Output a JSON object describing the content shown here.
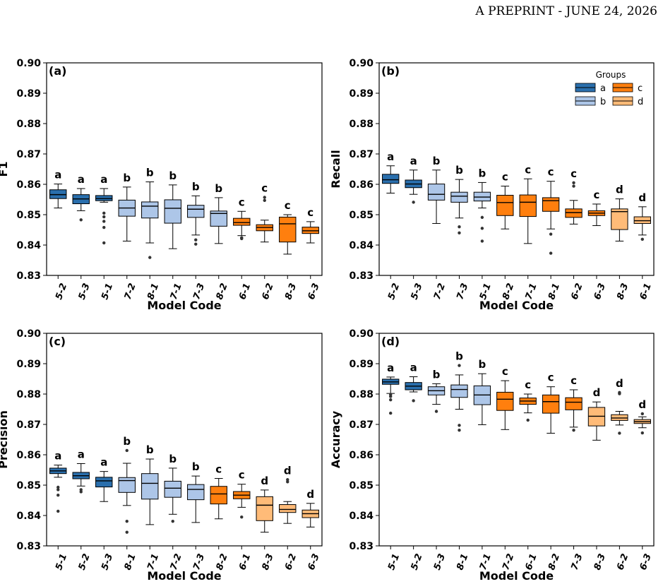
{
  "header": {
    "prefix": "A",
    "rest": "PREPRINT - JUNE 24, 2026"
  },
  "colors": {
    "a": "#2a6fad",
    "b": "#adc6e8",
    "c": "#ff7f0e",
    "d": "#ffbb78"
  },
  "legend": {
    "title": "Groups",
    "items": [
      "a",
      "b",
      "c",
      "d"
    ]
  },
  "chart_data": [
    {
      "type": "box",
      "panel": "(a)",
      "xlabel": "Model Code",
      "ylabel": "F1",
      "ylim": [
        0.83,
        0.9
      ],
      "yticks": [
        "0.83",
        "0.84",
        "0.85",
        "0.86",
        "0.87",
        "0.88",
        "0.89",
        "0.90"
      ],
      "boxes": [
        {
          "cat": "5-2",
          "group": "a",
          "min": 0.8522,
          "q1": 0.8553,
          "median": 0.8566,
          "q3": 0.8582,
          "max": 0.8601,
          "outliers": []
        },
        {
          "cat": "5-3",
          "group": "a",
          "min": 0.8513,
          "q1": 0.8536,
          "median": 0.8552,
          "q3": 0.8566,
          "max": 0.8586,
          "outliers": [
            0.8483
          ]
        },
        {
          "cat": "5-1",
          "group": "a",
          "min": 0.8541,
          "q1": 0.8546,
          "median": 0.8553,
          "q3": 0.8563,
          "max": 0.8586,
          "outliers": [
            0.8505,
            0.8493,
            0.8478,
            0.8458,
            0.8407
          ]
        },
        {
          "cat": "7-2",
          "group": "b",
          "min": 0.8413,
          "q1": 0.8495,
          "median": 0.8522,
          "q3": 0.8548,
          "max": 0.8591,
          "outliers": []
        },
        {
          "cat": "8-1",
          "group": "b",
          "min": 0.8407,
          "q1": 0.8489,
          "median": 0.8528,
          "q3": 0.8542,
          "max": 0.8608,
          "outliers": [
            0.8359
          ]
        },
        {
          "cat": "7-1",
          "group": "b",
          "min": 0.8388,
          "q1": 0.8472,
          "median": 0.8521,
          "q3": 0.8549,
          "max": 0.8598,
          "outliers": []
        },
        {
          "cat": "7-3",
          "group": "b",
          "min": 0.8433,
          "q1": 0.8491,
          "median": 0.8518,
          "q3": 0.8531,
          "max": 0.8562,
          "outliers": [
            0.8417,
            0.8403
          ]
        },
        {
          "cat": "8-2",
          "group": "b",
          "min": 0.8405,
          "q1": 0.8462,
          "median": 0.8504,
          "q3": 0.8512,
          "max": 0.8556,
          "outliers": []
        },
        {
          "cat": "6-1",
          "group": "c",
          "min": 0.8431,
          "q1": 0.8465,
          "median": 0.8474,
          "q3": 0.8488,
          "max": 0.8511,
          "outliers": [
            0.8424,
            0.8421
          ]
        },
        {
          "cat": "6-2",
          "group": "c",
          "min": 0.841,
          "q1": 0.8447,
          "median": 0.8458,
          "q3": 0.8467,
          "max": 0.8482,
          "outliers": [
            0.8557,
            0.8547
          ]
        },
        {
          "cat": "8-3",
          "group": "c",
          "min": 0.837,
          "q1": 0.841,
          "median": 0.847,
          "q3": 0.8492,
          "max": 0.85,
          "outliers": []
        },
        {
          "cat": "6-3",
          "group": "c",
          "min": 0.8407,
          "q1": 0.8438,
          "median": 0.8447,
          "q3": 0.8459,
          "max": 0.8477,
          "outliers": []
        }
      ],
      "letters": [
        "a",
        "a",
        "a",
        "b",
        "b",
        "b",
        "b",
        "b",
        "c",
        "c",
        "c",
        "c"
      ]
    },
    {
      "type": "box",
      "panel": "(b)",
      "xlabel": "Model Code",
      "ylabel": "Recall",
      "ylim": [
        0.83,
        0.9
      ],
      "yticks": [
        "0.83",
        "0.84",
        "0.85",
        "0.86",
        "0.87",
        "0.88",
        "0.89",
        "0.90"
      ],
      "boxes": [
        {
          "cat": "5-2",
          "group": "a",
          "min": 0.8571,
          "q1": 0.8603,
          "median": 0.8615,
          "q3": 0.8633,
          "max": 0.8661,
          "outliers": []
        },
        {
          "cat": "5-3",
          "group": "a",
          "min": 0.8567,
          "q1": 0.8589,
          "median": 0.8601,
          "q3": 0.8614,
          "max": 0.8647,
          "outliers": [
            0.8541
          ]
        },
        {
          "cat": "7-2",
          "group": "b",
          "min": 0.8471,
          "q1": 0.8548,
          "median": 0.8567,
          "q3": 0.8601,
          "max": 0.8647,
          "outliers": []
        },
        {
          "cat": "7-3",
          "group": "b",
          "min": 0.8489,
          "q1": 0.8541,
          "median": 0.8561,
          "q3": 0.8574,
          "max": 0.8616,
          "outliers": [
            0.846,
            0.844
          ]
        },
        {
          "cat": "5-1",
          "group": "b",
          "min": 0.8522,
          "q1": 0.8545,
          "median": 0.8558,
          "q3": 0.8574,
          "max": 0.8606,
          "outliers": [
            0.8491,
            0.8455,
            0.8413
          ]
        },
        {
          "cat": "8-2",
          "group": "c",
          "min": 0.8453,
          "q1": 0.8497,
          "median": 0.854,
          "q3": 0.8564,
          "max": 0.8594,
          "outliers": []
        },
        {
          "cat": "7-1",
          "group": "c",
          "min": 0.8405,
          "q1": 0.8494,
          "median": 0.8541,
          "q3": 0.8565,
          "max": 0.8618,
          "outliers": []
        },
        {
          "cat": "8-1",
          "group": "c",
          "min": 0.8453,
          "q1": 0.8511,
          "median": 0.8546,
          "q3": 0.8556,
          "max": 0.861,
          "outliers": [
            0.8436,
            0.8373
          ]
        },
        {
          "cat": "6-2",
          "group": "c",
          "min": 0.8469,
          "q1": 0.8491,
          "median": 0.8507,
          "q3": 0.8519,
          "max": 0.8547,
          "outliers": [
            0.8605,
            0.8594
          ]
        },
        {
          "cat": "6-3",
          "group": "c",
          "min": 0.8464,
          "q1": 0.8497,
          "median": 0.8505,
          "q3": 0.8513,
          "max": 0.8535,
          "outliers": []
        },
        {
          "cat": "8-3",
          "group": "d",
          "min": 0.8413,
          "q1": 0.8451,
          "median": 0.851,
          "q3": 0.8519,
          "max": 0.8552,
          "outliers": []
        },
        {
          "cat": "6-1",
          "group": "d",
          "min": 0.8433,
          "q1": 0.8471,
          "median": 0.848,
          "q3": 0.8493,
          "max": 0.8526,
          "outliers": [
            0.8419
          ]
        }
      ],
      "letters": [
        "a",
        "a",
        "b",
        "b",
        "b",
        "c",
        "c",
        "c",
        "c",
        "c",
        "d",
        "d"
      ]
    },
    {
      "type": "box",
      "panel": "(c)",
      "xlabel": "Model Code",
      "ylabel": "Precision",
      "ylim": [
        0.83,
        0.9
      ],
      "yticks": [
        "0.83",
        "0.84",
        "0.85",
        "0.86",
        "0.87",
        "0.88",
        "0.89",
        "0.90"
      ],
      "boxes": [
        {
          "cat": "5-1",
          "group": "a",
          "min": 0.8526,
          "q1": 0.8538,
          "median": 0.8547,
          "q3": 0.8556,
          "max": 0.8566,
          "outliers": [
            0.8493,
            0.8485,
            0.8467,
            0.8414
          ]
        },
        {
          "cat": "5-2",
          "group": "a",
          "min": 0.8497,
          "q1": 0.8521,
          "median": 0.8531,
          "q3": 0.8542,
          "max": 0.8571,
          "outliers": [
            0.8485,
            0.8478
          ]
        },
        {
          "cat": "5-3",
          "group": "a",
          "min": 0.8446,
          "q1": 0.8494,
          "median": 0.8514,
          "q3": 0.8526,
          "max": 0.8545,
          "outliers": []
        },
        {
          "cat": "8-1",
          "group": "b",
          "min": 0.8433,
          "q1": 0.8476,
          "median": 0.8515,
          "q3": 0.8525,
          "max": 0.8572,
          "outliers": [
            0.8614,
            0.8381,
            0.8345
          ]
        },
        {
          "cat": "7-1",
          "group": "b",
          "min": 0.837,
          "q1": 0.8454,
          "median": 0.8506,
          "q3": 0.8538,
          "max": 0.8586,
          "outliers": []
        },
        {
          "cat": "7-2",
          "group": "b",
          "min": 0.8404,
          "q1": 0.846,
          "median": 0.849,
          "q3": 0.8513,
          "max": 0.8556,
          "outliers": [
            0.8381
          ]
        },
        {
          "cat": "7-3",
          "group": "b",
          "min": 0.8377,
          "q1": 0.8452,
          "median": 0.8486,
          "q3": 0.8502,
          "max": 0.853,
          "outliers": []
        },
        {
          "cat": "8-2",
          "group": "c",
          "min": 0.8389,
          "q1": 0.8438,
          "median": 0.8471,
          "q3": 0.8496,
          "max": 0.8522,
          "outliers": []
        },
        {
          "cat": "6-1",
          "group": "c",
          "min": 0.8427,
          "q1": 0.8455,
          "median": 0.8467,
          "q3": 0.8479,
          "max": 0.8503,
          "outliers": [
            0.8395
          ]
        },
        {
          "cat": "8-3",
          "group": "d",
          "min": 0.8345,
          "q1": 0.8383,
          "median": 0.8434,
          "q3": 0.8462,
          "max": 0.8484,
          "outliers": []
        },
        {
          "cat": "6-2",
          "group": "d",
          "min": 0.8374,
          "q1": 0.841,
          "median": 0.842,
          "q3": 0.8436,
          "max": 0.8446,
          "outliers": [
            0.8518,
            0.8511
          ]
        },
        {
          "cat": "6-3",
          "group": "d",
          "min": 0.8362,
          "q1": 0.8393,
          "median": 0.8406,
          "q3": 0.8418,
          "max": 0.844,
          "outliers": []
        }
      ],
      "letters": [
        "a",
        "a",
        "a",
        "b",
        "b",
        "b",
        "b",
        "c",
        "c",
        "d",
        "d",
        "d"
      ]
    },
    {
      "type": "box",
      "panel": "(d)",
      "xlabel": "Model Code",
      "ylabel": "Accuracy",
      "ylim": [
        0.83,
        0.9
      ],
      "yticks": [
        "0.83",
        "0.84",
        "0.85",
        "0.86",
        "0.87",
        "0.88",
        "0.89",
        "0.90"
      ],
      "boxes": [
        {
          "cat": "5-1",
          "group": "a",
          "min": 0.8802,
          "q1": 0.8832,
          "median": 0.884,
          "q3": 0.8849,
          "max": 0.8856,
          "outliers": [
            0.8798,
            0.8792,
            0.8781,
            0.8737
          ]
        },
        {
          "cat": "5-2",
          "group": "a",
          "min": 0.8807,
          "q1": 0.8814,
          "median": 0.8826,
          "q3": 0.8838,
          "max": 0.8857,
          "outliers": [
            0.8778
          ]
        },
        {
          "cat": "5-3",
          "group": "b",
          "min": 0.8766,
          "q1": 0.8797,
          "median": 0.8811,
          "q3": 0.8824,
          "max": 0.8834,
          "outliers": [
            0.8743
          ]
        },
        {
          "cat": "8-1",
          "group": "b",
          "min": 0.875,
          "q1": 0.8789,
          "median": 0.8815,
          "q3": 0.883,
          "max": 0.8863,
          "outliers": [
            0.8894,
            0.8697,
            0.8681
          ]
        },
        {
          "cat": "7-1",
          "group": "b",
          "min": 0.8699,
          "q1": 0.8765,
          "median": 0.8797,
          "q3": 0.8827,
          "max": 0.8867,
          "outliers": []
        },
        {
          "cat": "7-2",
          "group": "c",
          "min": 0.8683,
          "q1": 0.8746,
          "median": 0.8783,
          "q3": 0.8806,
          "max": 0.8844,
          "outliers": []
        },
        {
          "cat": "6-1",
          "group": "c",
          "min": 0.8738,
          "q1": 0.8766,
          "median": 0.8777,
          "q3": 0.8787,
          "max": 0.88,
          "outliers": [
            0.8714
          ]
        },
        {
          "cat": "8-2",
          "group": "c",
          "min": 0.8671,
          "q1": 0.8737,
          "median": 0.8775,
          "q3": 0.8797,
          "max": 0.8824,
          "outliers": []
        },
        {
          "cat": "7-3",
          "group": "c",
          "min": 0.8691,
          "q1": 0.8748,
          "median": 0.8773,
          "q3": 0.8788,
          "max": 0.8814,
          "outliers": [
            0.8681
          ]
        },
        {
          "cat": "8-3",
          "group": "d",
          "min": 0.8648,
          "q1": 0.8695,
          "median": 0.8727,
          "q3": 0.8756,
          "max": 0.8774,
          "outliers": []
        },
        {
          "cat": "6-2",
          "group": "d",
          "min": 0.8698,
          "q1": 0.8713,
          "median": 0.8721,
          "q3": 0.8732,
          "max": 0.8743,
          "outliers": [
            0.8805,
            0.8801,
            0.8671
          ]
        },
        {
          "cat": "6-3",
          "group": "d",
          "min": 0.8689,
          "q1": 0.8703,
          "median": 0.8709,
          "q3": 0.8716,
          "max": 0.8725,
          "outliers": [
            0.8735,
            0.8672
          ]
        }
      ],
      "letters": [
        "a",
        "a",
        "b",
        "b",
        "b",
        "c",
        "c",
        "c",
        "c",
        "d",
        "d",
        "d"
      ]
    }
  ]
}
